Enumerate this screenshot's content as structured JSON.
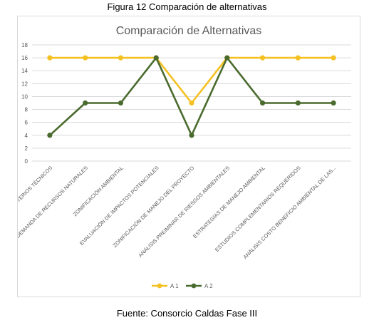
{
  "figure_caption": "Figura  12 Comparación de alternativas",
  "source_caption": "Fuente: Consorcio Caldas Fase III",
  "chart_data": {
    "type": "line",
    "title": "Comparación de Alternativas",
    "xlabel": "",
    "ylabel": "",
    "ylim": [
      0,
      18
    ],
    "yticks": [
      0,
      2,
      4,
      6,
      8,
      10,
      12,
      14,
      16,
      18
    ],
    "grid": true,
    "legend": "bottom",
    "categories": [
      "CRITERIOS TÉCNICOS",
      "DEMANDA DE RECURSOS NATURALES",
      "ZONIFICACIÓN AMBIENTAL",
      "EVALUACIÓN DE IMPACTOS POTENCIALES",
      "ZONIFICACIÓN DE MANEJO DEL PROYECTO",
      "ANÁLISIS PREIMINAR DE RIESGOS AMBIENTALES",
      "ESTRATEGIAS DE MANEJO AMBIENTAL",
      "ESTUDIOS COMPLEMENTARIOS REQUERIDOS",
      "ANÁLISIS COSTO BENEFICIO AMBIENTAL DE LAS..."
    ],
    "series": [
      {
        "name": "A 1",
        "color": "#f5c022",
        "values": [
          16,
          16,
          16,
          16,
          9,
          16,
          16,
          16,
          16
        ]
      },
      {
        "name": "A 2",
        "color": "#4a6b2e",
        "values": [
          4,
          9,
          9,
          16,
          4,
          16,
          9,
          9,
          9
        ]
      }
    ]
  }
}
